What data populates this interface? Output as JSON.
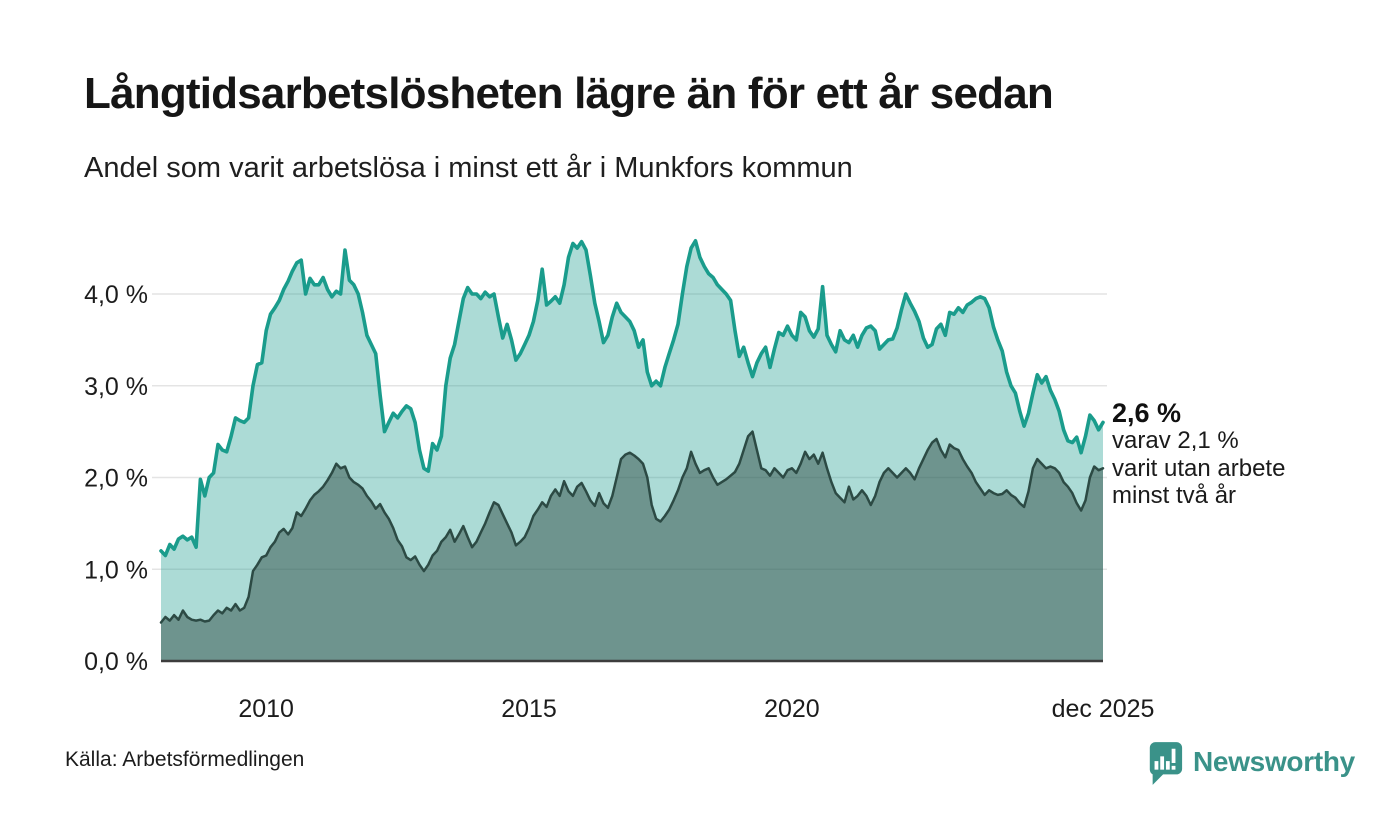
{
  "header": {
    "title": "Långtidsarbetslösheten lägre än för ett år sedan",
    "subtitle": "Andel som varit arbetslösa i minst ett år i Munkfors kommun"
  },
  "annotation": {
    "value": "2,6 %",
    "line1": "varav 2,1 %",
    "line2": "varit utan arbete",
    "line3": "minst två år"
  },
  "footer": {
    "source": "Källa: Arbetsförmedlingen",
    "brand": "Newsworthy"
  },
  "colors": {
    "line_1yr": "#1a9c8c",
    "fill_1yr": "rgba(26,156,140,0.36)",
    "line_2yr": "#2c4a44",
    "fill_2yr": "rgba(36,61,56,0.45)",
    "grid": "#e4e4e4",
    "axis": "#3d3d3d",
    "tick_text": "#1c1c1c",
    "brand_teal": "#3a9289"
  },
  "chart_data": {
    "type": "area",
    "title": "Långtidsarbetslösheten lägre än för ett år sedan",
    "subtitle": "Andel som varit arbetslösa i minst ett år i Munkfors kommun",
    "unit": "%",
    "x_start": "2008-01",
    "x_end": "2025-12",
    "x_range": [
      2008.0,
      2025.9167
    ],
    "ylim": [
      0,
      4.75
    ],
    "grid": true,
    "y_ticks": [
      {
        "label": "0,0 %",
        "value": 0
      },
      {
        "label": "1,0 %",
        "value": 1
      },
      {
        "label": "2,0 %",
        "value": 2
      },
      {
        "label": "3,0 %",
        "value": 3
      },
      {
        "label": "4,0 %",
        "value": 4
      }
    ],
    "x_ticks": [
      {
        "label": "2010",
        "year": 2010.0
      },
      {
        "label": "2015",
        "year": 2015.0
      },
      {
        "label": "2020",
        "year": 2020.0
      },
      {
        "label": "dec 2025",
        "year": 2025.9167
      }
    ],
    "series": [
      {
        "name": "Arbetslösa minst ett år",
        "final_label": "2,6 %",
        "final_value": 2.6,
        "values": [
          1.2,
          1.15,
          1.27,
          1.22,
          1.33,
          1.36,
          1.32,
          1.35,
          1.24,
          1.98,
          1.8,
          2.0,
          2.05,
          2.36,
          2.3,
          2.28,
          2.45,
          2.65,
          2.62,
          2.6,
          2.65,
          3.0,
          3.23,
          3.25,
          3.6,
          3.78,
          3.85,
          3.93,
          4.05,
          4.14,
          4.25,
          4.34,
          4.37,
          4.0,
          4.17,
          4.1,
          4.1,
          4.18,
          4.05,
          3.97,
          4.03,
          4.0,
          4.48,
          4.15,
          4.1,
          4.0,
          3.8,
          3.55,
          3.45,
          3.35,
          2.9,
          2.5,
          2.6,
          2.7,
          2.65,
          2.72,
          2.78,
          2.75,
          2.6,
          2.3,
          2.1,
          2.07,
          2.37,
          2.3,
          2.45,
          3.0,
          3.3,
          3.45,
          3.7,
          3.95,
          4.07,
          4.0,
          4.0,
          3.95,
          4.02,
          3.97,
          4.0,
          3.75,
          3.52,
          3.67,
          3.5,
          3.28,
          3.35,
          3.45,
          3.55,
          3.7,
          3.93,
          4.27,
          3.88,
          3.92,
          3.97,
          3.9,
          4.1,
          4.4,
          4.55,
          4.5,
          4.57,
          4.48,
          4.2,
          3.9,
          3.7,
          3.47,
          3.55,
          3.75,
          3.9,
          3.8,
          3.75,
          3.7,
          3.6,
          3.42,
          3.5,
          3.15,
          3.0,
          3.05,
          3.0,
          3.2,
          3.35,
          3.5,
          3.67,
          4.0,
          4.3,
          4.5,
          4.58,
          4.4,
          4.3,
          4.22,
          4.18,
          4.1,
          4.05,
          4.0,
          3.93,
          3.6,
          3.32,
          3.42,
          3.25,
          3.1,
          3.25,
          3.35,
          3.42,
          3.2,
          3.4,
          3.58,
          3.55,
          3.65,
          3.55,
          3.5,
          3.8,
          3.75,
          3.6,
          3.53,
          3.62,
          4.08,
          3.55,
          3.45,
          3.37,
          3.6,
          3.5,
          3.47,
          3.55,
          3.42,
          3.55,
          3.63,
          3.65,
          3.6,
          3.4,
          3.45,
          3.5,
          3.51,
          3.63,
          3.83,
          4.0,
          3.9,
          3.81,
          3.7,
          3.52,
          3.42,
          3.45,
          3.62,
          3.67,
          3.55,
          3.8,
          3.78,
          3.85,
          3.8,
          3.88,
          3.91,
          3.95,
          3.97,
          3.95,
          3.85,
          3.64,
          3.5,
          3.38,
          3.15,
          3.0,
          2.92,
          2.72,
          2.56,
          2.7,
          2.92,
          3.12,
          3.03,
          3.1,
          2.95,
          2.85,
          2.72,
          2.52,
          2.4,
          2.38,
          2.44,
          2.27,
          2.45,
          2.68,
          2.62,
          2.52,
          2.6
        ]
      },
      {
        "name": "varav utan arbete minst två år",
        "final_label": "2,1 %",
        "final_value": 2.1,
        "values": [
          0.42,
          0.48,
          0.44,
          0.5,
          0.45,
          0.55,
          0.48,
          0.45,
          0.44,
          0.45,
          0.43,
          0.44,
          0.5,
          0.55,
          0.52,
          0.58,
          0.55,
          0.62,
          0.55,
          0.58,
          0.7,
          0.98,
          1.05,
          1.13,
          1.15,
          1.24,
          1.3,
          1.4,
          1.44,
          1.38,
          1.45,
          1.62,
          1.58,
          1.66,
          1.75,
          1.81,
          1.85,
          1.9,
          1.97,
          2.05,
          2.15,
          2.1,
          2.12,
          2.0,
          1.95,
          1.92,
          1.88,
          1.8,
          1.74,
          1.66,
          1.71,
          1.62,
          1.55,
          1.45,
          1.32,
          1.25,
          1.13,
          1.1,
          1.14,
          1.05,
          0.98,
          1.05,
          1.15,
          1.2,
          1.3,
          1.35,
          1.43,
          1.3,
          1.38,
          1.47,
          1.35,
          1.24,
          1.3,
          1.4,
          1.5,
          1.62,
          1.73,
          1.7,
          1.6,
          1.5,
          1.4,
          1.26,
          1.3,
          1.35,
          1.45,
          1.58,
          1.65,
          1.73,
          1.68,
          1.8,
          1.87,
          1.8,
          1.96,
          1.85,
          1.8,
          1.9,
          1.94,
          1.85,
          1.75,
          1.69,
          1.83,
          1.72,
          1.67,
          1.8,
          2.0,
          2.2,
          2.25,
          2.27,
          2.24,
          2.2,
          2.15,
          2.0,
          1.7,
          1.55,
          1.52,
          1.58,
          1.65,
          1.75,
          1.86,
          2.0,
          2.1,
          2.28,
          2.15,
          2.05,
          2.08,
          2.1,
          2.0,
          1.92,
          1.95,
          1.98,
          2.02,
          2.06,
          2.15,
          2.3,
          2.45,
          2.5,
          2.3,
          2.1,
          2.08,
          2.02,
          2.1,
          2.05,
          2.0,
          2.08,
          2.1,
          2.05,
          2.15,
          2.28,
          2.2,
          2.25,
          2.15,
          2.27,
          2.1,
          1.95,
          1.83,
          1.78,
          1.73,
          1.9,
          1.76,
          1.8,
          1.86,
          1.8,
          1.7,
          1.8,
          1.95,
          2.05,
          2.1,
          2.05,
          2.0,
          2.05,
          2.1,
          2.05,
          1.98,
          2.1,
          2.2,
          2.3,
          2.38,
          2.42,
          2.3,
          2.22,
          2.36,
          2.32,
          2.3,
          2.2,
          2.12,
          2.05,
          1.95,
          1.88,
          1.81,
          1.86,
          1.83,
          1.81,
          1.82,
          1.86,
          1.81,
          1.78,
          1.72,
          1.68,
          1.85,
          2.1,
          2.2,
          2.15,
          2.1,
          2.12,
          2.1,
          2.05,
          1.95,
          1.9,
          1.83,
          1.72,
          1.64,
          1.75,
          2.0,
          2.12,
          2.08,
          2.1
        ]
      }
    ]
  }
}
